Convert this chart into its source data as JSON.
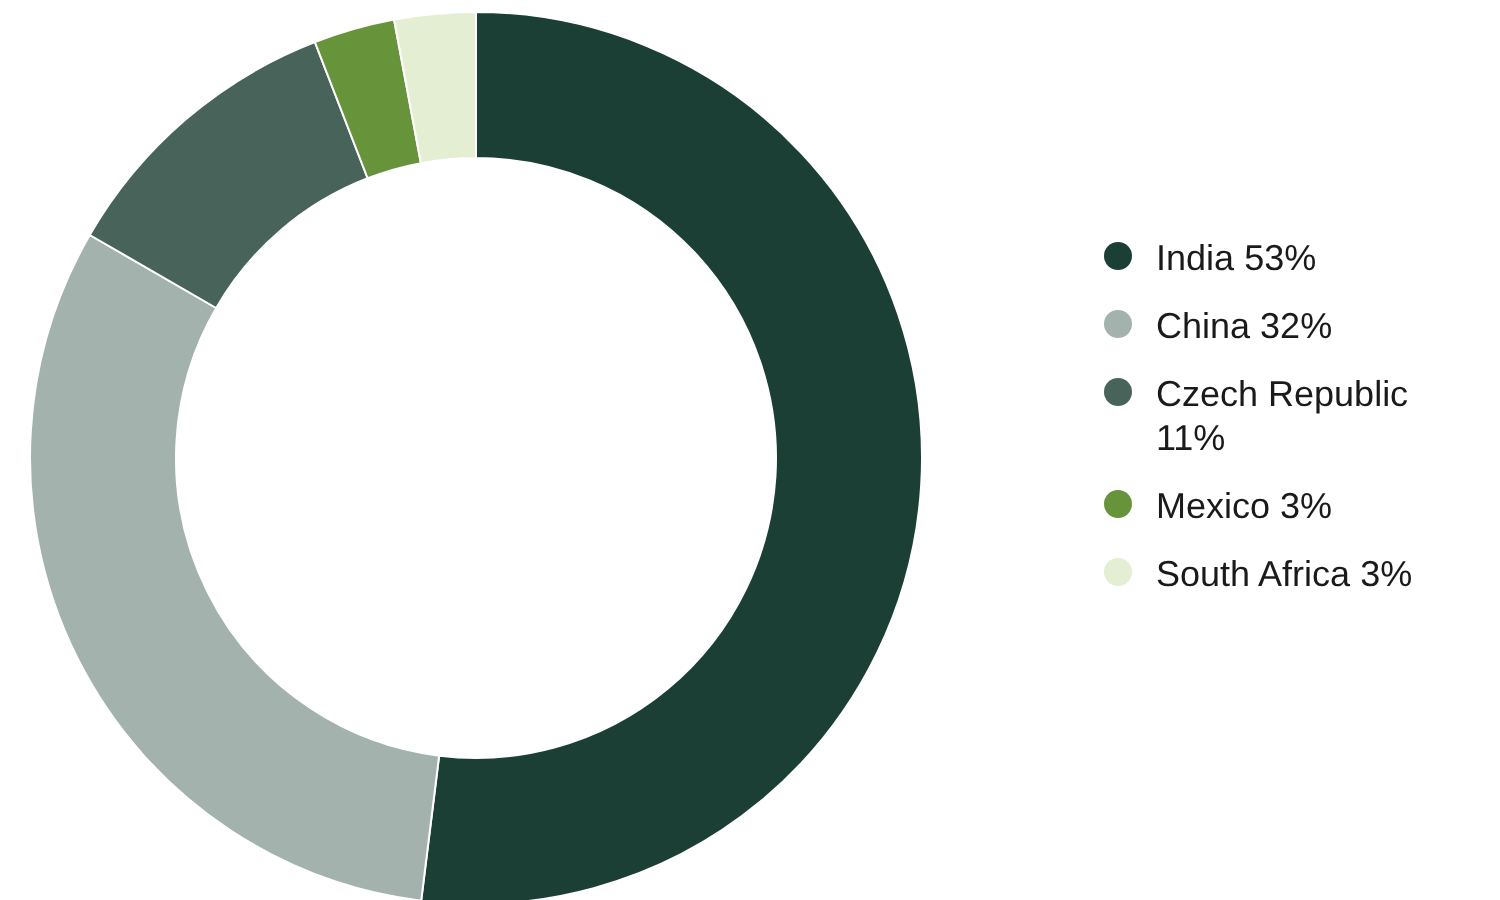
{
  "chart_data": {
    "type": "donut",
    "categories": [
      "India",
      "China",
      "Czech Republic",
      "Mexico",
      "South Africa"
    ],
    "values": [
      53,
      32,
      11,
      3,
      3
    ],
    "colors": [
      "#1b3f35",
      "#a3b2ad",
      "#48635a",
      "#67933a",
      "#e3eed3"
    ],
    "value_labels": [
      "53%",
      "32%",
      "11%",
      "3%",
      "3%"
    ],
    "legend": "right"
  }
}
